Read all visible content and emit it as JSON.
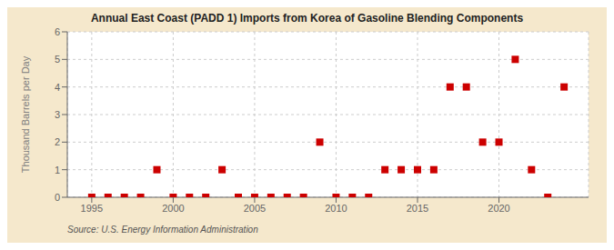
{
  "chart_data": {
    "type": "scatter",
    "title": "Annual East Coast (PADD 1) Imports from Korea of Gasoline Blending Components",
    "ylabel": "Thousand Barrels per Day",
    "annotation": "Source: U.S. Energy Information Administration",
    "x": [
      1995,
      1996,
      1997,
      1998,
      1999,
      2000,
      2001,
      2002,
      2003,
      2004,
      2005,
      2006,
      2007,
      2008,
      2009,
      2010,
      2011,
      2012,
      2013,
      2014,
      2015,
      2016,
      2017,
      2018,
      2019,
      2020,
      2021,
      2022,
      2023,
      2024
    ],
    "values": [
      0,
      0,
      0,
      0,
      1,
      0,
      0,
      0,
      1,
      0,
      0,
      0,
      0,
      0,
      2,
      0,
      0,
      0,
      1,
      1,
      1,
      1,
      4,
      4,
      2,
      2,
      5,
      1,
      0,
      4
    ],
    "color": "#cc0000",
    "marker": "square",
    "xlim": [
      1993.5,
      2025.5
    ],
    "xticks": [
      1995,
      2000,
      2005,
      2010,
      2015,
      2020
    ],
    "ylim": [
      0,
      6
    ],
    "yticks": [
      0,
      1,
      2,
      3,
      4,
      5,
      6
    ],
    "grid": true
  }
}
